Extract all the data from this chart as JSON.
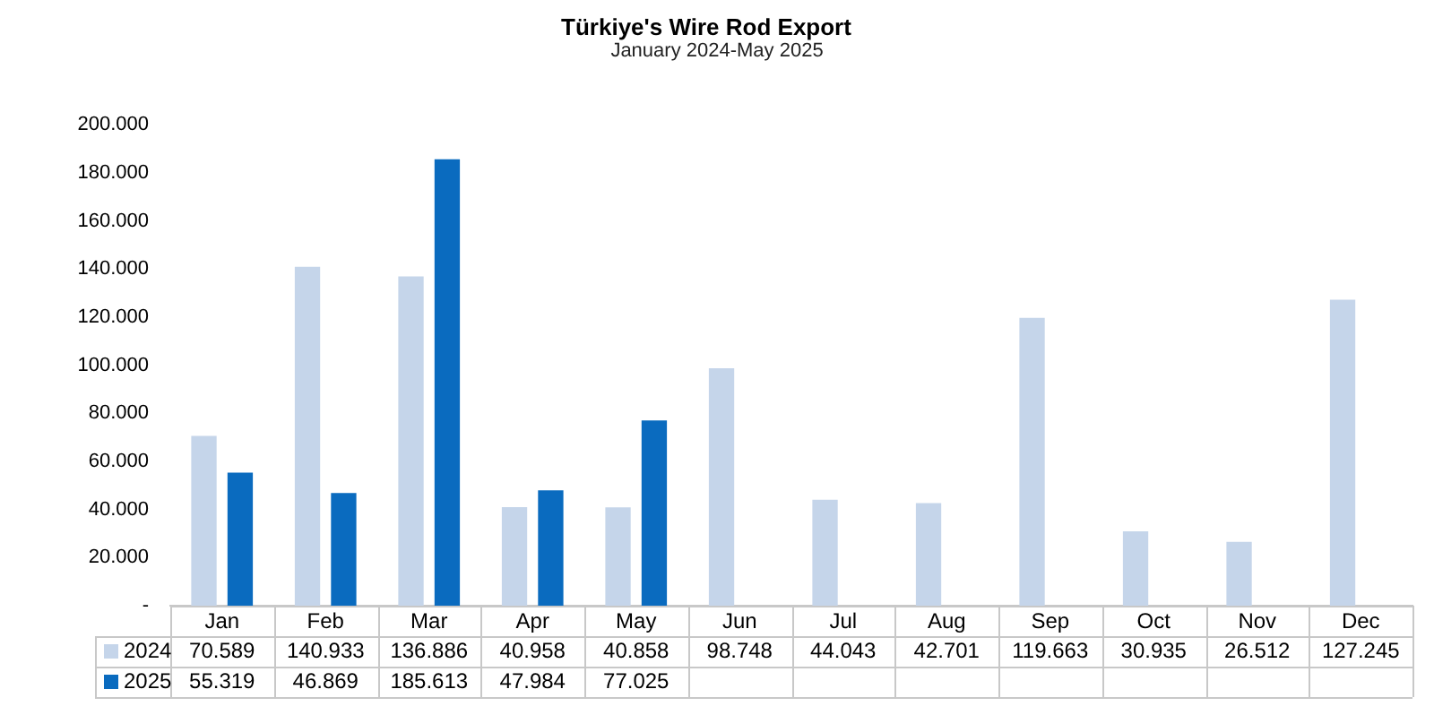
{
  "chart_data": {
    "type": "bar",
    "title": "Türkiye's Wire Rod Export",
    "subtitle": "January 2024-May 2025",
    "categories": [
      "Jan",
      "Feb",
      "Mar",
      "Apr",
      "May",
      "Jun",
      "Jul",
      "Aug",
      "Sep",
      "Oct",
      "Nov",
      "Dec"
    ],
    "series": [
      {
        "name": "2024",
        "color": "#c5d5ea",
        "values": [
          70589,
          140933,
          136886,
          40958,
          40858,
          98748,
          44043,
          42701,
          119663,
          30935,
          26512,
          127245
        ],
        "value_labels": [
          "70.589",
          "140.933",
          "136.886",
          "40.958",
          "40.858",
          "98.748",
          "44.043",
          "42.701",
          "119.663",
          "30.935",
          "26.512",
          "127.245"
        ]
      },
      {
        "name": "2025",
        "color": "#0a6bbf",
        "values": [
          55319,
          46869,
          185613,
          47984,
          77025,
          null,
          null,
          null,
          null,
          null,
          null,
          null
        ],
        "value_labels": [
          "55.319",
          "46.869",
          "185.613",
          "47.984",
          "77.025",
          null,
          null,
          null,
          null,
          null,
          null,
          null
        ]
      }
    ],
    "ylim": [
      0,
      200000
    ],
    "yticks": [
      {
        "value": 0,
        "label": "-"
      },
      {
        "value": 20000,
        "label": "20.000"
      },
      {
        "value": 40000,
        "label": "40.000"
      },
      {
        "value": 60000,
        "label": "60.000"
      },
      {
        "value": 80000,
        "label": "80.000"
      },
      {
        "value": 100000,
        "label": "100.000"
      },
      {
        "value": 120000,
        "label": "120.000"
      },
      {
        "value": 140000,
        "label": "140.000"
      },
      {
        "value": 160000,
        "label": "160.000"
      },
      {
        "value": 180000,
        "label": "180.000"
      },
      {
        "value": 200000,
        "label": "200.000"
      }
    ],
    "grid": false,
    "legend": "bottom left"
  }
}
